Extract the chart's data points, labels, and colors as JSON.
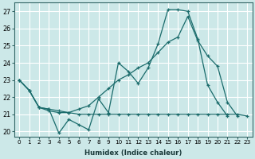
{
  "xlabel": "Humidex (Indice chaleur)",
  "xlim": [
    -0.5,
    23.5
  ],
  "ylim": [
    19.7,
    27.5
  ],
  "yticks": [
    20,
    21,
    22,
    23,
    24,
    25,
    26,
    27
  ],
  "xticks": [
    0,
    1,
    2,
    3,
    4,
    5,
    6,
    7,
    8,
    9,
    10,
    11,
    12,
    13,
    14,
    15,
    16,
    17,
    18,
    19,
    20,
    21,
    22,
    23
  ],
  "bg_color": "#cce8e8",
  "grid_color": "#ffffff",
  "line_color": "#1a6b6b",
  "line1_x": [
    0,
    1,
    2,
    3,
    4,
    5,
    6,
    7,
    8,
    9,
    10,
    11,
    12,
    13,
    14,
    15,
    16,
    17,
    18,
    19,
    20,
    21
  ],
  "line1_y": [
    23.0,
    22.4,
    21.4,
    21.3,
    19.9,
    20.7,
    20.4,
    20.1,
    21.9,
    21.1,
    24.0,
    23.5,
    22.8,
    23.7,
    25.1,
    27.1,
    27.1,
    27.0,
    25.4,
    22.7,
    21.7,
    20.9
  ],
  "line2_x": [
    0,
    1,
    2,
    3,
    4,
    5,
    6,
    7,
    8,
    9,
    10,
    11,
    12,
    13,
    14,
    15,
    16,
    17,
    18,
    19,
    20,
    21,
    22,
    23
  ],
  "line2_y": [
    23.0,
    22.4,
    21.4,
    21.3,
    21.2,
    21.1,
    21.3,
    21.5,
    22.0,
    22.5,
    23.0,
    23.3,
    23.7,
    24.0,
    24.6,
    25.2,
    25.5,
    26.7,
    25.3,
    24.4,
    23.8,
    21.7,
    20.9,
    null
  ],
  "line3_x": [
    0,
    1,
    2,
    3,
    4,
    5,
    6,
    7,
    8,
    9,
    10,
    11,
    12,
    13,
    14,
    15,
    16,
    17,
    18,
    19,
    20,
    21,
    22,
    23
  ],
  "line3_y": [
    23.0,
    22.4,
    21.4,
    21.2,
    21.1,
    21.1,
    21.0,
    21.0,
    21.0,
    21.0,
    21.0,
    21.0,
    21.0,
    21.0,
    21.0,
    21.0,
    21.0,
    21.0,
    21.0,
    21.0,
    21.0,
    21.0,
    21.0,
    20.9
  ]
}
